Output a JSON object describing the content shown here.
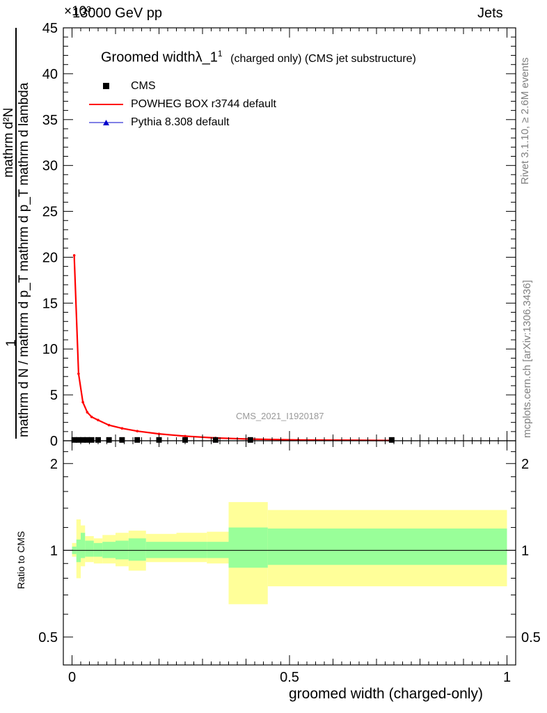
{
  "header": {
    "left": "13000 GeV pp",
    "right": "Jets",
    "exponent": "×10³"
  },
  "main_plot": {
    "title": "Groomed widthλ_1",
    "title_sup": "1",
    "subtitle": "(charged only) (CMS jet substructure)",
    "ylabel_num": "1",
    "ylabel_den": "mathrm d N / mathrm d p_T mathrm d p_T mathrm d lambda",
    "ylabel_top": "mathrm d²N",
    "watermark": "CMS_2021_I1920187"
  },
  "legend": [
    {
      "label": "CMS",
      "color": "#000000",
      "marker": "square"
    },
    {
      "label": "POWHEG BOX r3744 default",
      "color": "#ff0000",
      "marker": "line"
    },
    {
      "label": "Pythia 8.308 default",
      "color": "#0000cc",
      "marker": "triangle"
    }
  ],
  "ratio_plot": {
    "ylabel": "Ratio to CMS",
    "xlabel": "groomed width (charged-only)"
  },
  "side_text": {
    "rivet": "Rivet 3.1.10, ≥ 2.6M events",
    "mcplots": "mcplots.cern.ch [arXiv:1306.3436]"
  },
  "colors": {
    "cms": "#000000",
    "powheg": "#ff0000",
    "pythia": "#0000cc",
    "band_inner": "#99ff99",
    "band_outer": "#ffff99"
  },
  "chart_data": [
    {
      "type": "line",
      "panel": "main",
      "title": "Groomed widthλ_1",
      "xlabel": "groomed width (charged-only)",
      "ylabel": "mathrm d N / mathrm d p_T mathrm d p_T mathrm d lambda",
      "xlim": [
        -0.02,
        1.02
      ],
      "ylim": [
        0,
        45000
      ],
      "y_multiplier": "×10³",
      "x_ticks": [
        "0",
        "0.5",
        "1"
      ],
      "y_ticks": [
        "0",
        "5",
        "10",
        "15",
        "20",
        "25",
        "30",
        "35",
        "40",
        "45"
      ],
      "legend_position": "top-left",
      "series": [
        {
          "name": "CMS",
          "x": [
            0.005,
            0.015,
            0.025,
            0.035,
            0.045,
            0.06,
            0.085,
            0.115,
            0.15,
            0.2,
            0.26,
            0.33,
            0.41,
            0.735
          ],
          "y": [
            90,
            90,
            90,
            90,
            90,
            90,
            90,
            90,
            90,
            90,
            90,
            90,
            90,
            90
          ]
        },
        {
          "name": "POWHEG BOX r3744 default",
          "x": [
            0.005,
            0.015,
            0.025,
            0.035,
            0.045,
            0.06,
            0.085,
            0.115,
            0.15,
            0.2,
            0.26,
            0.33,
            0.41,
            0.52,
            0.735
          ],
          "y": [
            20200,
            7300,
            4200,
            3100,
            2600,
            2250,
            1700,
            1350,
            1050,
            750,
            500,
            300,
            180,
            90,
            30
          ]
        },
        {
          "name": "Pythia 8.308 default",
          "x": [
            0.005,
            0.015,
            0.025,
            0.035,
            0.045,
            0.06,
            0.085,
            0.115,
            0.15,
            0.2,
            0.26,
            0.33,
            0.41,
            0.735
          ],
          "y": [
            60,
            60,
            60,
            60,
            60,
            60,
            60,
            60,
            60,
            60,
            60,
            60,
            60,
            60
          ]
        }
      ]
    },
    {
      "type": "area",
      "panel": "ratio",
      "ylabel": "Ratio to CMS",
      "xlabel": "groomed width (charged-only)",
      "xlim": [
        -0.02,
        1.02
      ],
      "ylim": [
        0.4,
        2.4
      ],
      "y_scale": "log",
      "y_ticks": [
        "0.5",
        "1",
        "2"
      ],
      "x_ticks": [
        "0",
        "0.5",
        "1"
      ],
      "bins": [
        {
          "lo": 0.0,
          "hi": 0.01,
          "inner": [
            0.97,
            1.03
          ],
          "outer": [
            0.95,
            1.06
          ]
        },
        {
          "lo": 0.01,
          "hi": 0.02,
          "inner": [
            0.91,
            1.09
          ],
          "outer": [
            0.8,
            1.28
          ]
        },
        {
          "lo": 0.02,
          "hi": 0.03,
          "inner": [
            0.94,
            1.15
          ],
          "outer": [
            0.88,
            1.22
          ]
        },
        {
          "lo": 0.03,
          "hi": 0.05,
          "inner": [
            0.95,
            1.08
          ],
          "outer": [
            0.91,
            1.12
          ]
        },
        {
          "lo": 0.05,
          "hi": 0.07,
          "inner": [
            0.95,
            1.06
          ],
          "outer": [
            0.9,
            1.1
          ]
        },
        {
          "lo": 0.07,
          "hi": 0.1,
          "inner": [
            0.94,
            1.07
          ],
          "outer": [
            0.9,
            1.13
          ]
        },
        {
          "lo": 0.1,
          "hi": 0.13,
          "inner": [
            0.93,
            1.08
          ],
          "outer": [
            0.88,
            1.15
          ]
        },
        {
          "lo": 0.13,
          "hi": 0.17,
          "inner": [
            0.92,
            1.1
          ],
          "outer": [
            0.85,
            1.17
          ]
        },
        {
          "lo": 0.17,
          "hi": 0.24,
          "inner": [
            0.94,
            1.07
          ],
          "outer": [
            0.91,
            1.14
          ]
        },
        {
          "lo": 0.24,
          "hi": 0.31,
          "inner": [
            0.94,
            1.07
          ],
          "outer": [
            0.91,
            1.15
          ]
        },
        {
          "lo": 0.31,
          "hi": 0.36,
          "inner": [
            0.94,
            1.07
          ],
          "outer": [
            0.9,
            1.16
          ]
        },
        {
          "lo": 0.36,
          "hi": 0.45,
          "inner": [
            0.87,
            1.2
          ],
          "outer": [
            0.65,
            1.47
          ]
        },
        {
          "lo": 0.45,
          "hi": 1.0,
          "inner": [
            0.89,
            1.19
          ],
          "outer": [
            0.75,
            1.38
          ]
        }
      ],
      "reference": 1
    }
  ]
}
